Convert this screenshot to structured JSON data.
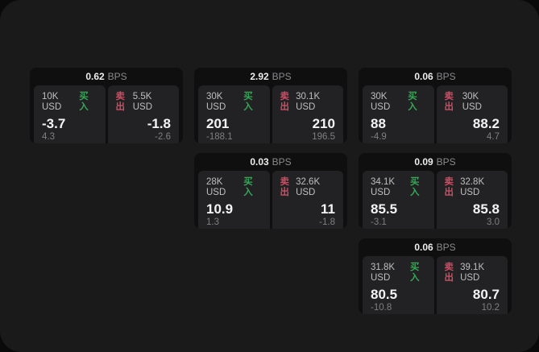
{
  "theme": {
    "page_background": "#0a0a0b",
    "window_background": "#1a1a1b",
    "card_background": "#0f0f10",
    "panel_background": "#222224",
    "buy_color": "#34a855",
    "sell_color": "#c94f64"
  },
  "labels": {
    "buy": "买入",
    "sell": "卖出",
    "bps_unit": "BPS"
  },
  "cards": [
    {
      "bps": "0.62",
      "grid": {
        "col": 1,
        "row": 1
      },
      "buy": {
        "size": "10K USD",
        "price": "-3.7",
        "sub": "4.3"
      },
      "sell": {
        "size": "5.5K USD",
        "price": "-1.8",
        "sub": "-2.6"
      }
    },
    {
      "bps": "2.92",
      "grid": {
        "col": 2,
        "row": 1
      },
      "buy": {
        "size": "30K USD",
        "price": "201",
        "sub": "-188.1"
      },
      "sell": {
        "size": "30.1K USD",
        "price": "210",
        "sub": "196.5"
      }
    },
    {
      "bps": "0.06",
      "grid": {
        "col": 3,
        "row": 1
      },
      "buy": {
        "size": "30K USD",
        "price": "88",
        "sub": "-4.9"
      },
      "sell": {
        "size": "30K USD",
        "price": "88.2",
        "sub": "4.7"
      }
    },
    {
      "bps": "0.03",
      "grid": {
        "col": 2,
        "row": 2
      },
      "buy": {
        "size": "28K USD",
        "price": "10.9",
        "sub": "1.3"
      },
      "sell": {
        "size": "32.6K USD",
        "price": "11",
        "sub": "-1.8"
      }
    },
    {
      "bps": "0.09",
      "grid": {
        "col": 3,
        "row": 2
      },
      "buy": {
        "size": "34.1K USD",
        "price": "85.5",
        "sub": "-3.1"
      },
      "sell": {
        "size": "32.8K USD",
        "price": "85.8",
        "sub": "3.0"
      }
    },
    {
      "bps": "0.06",
      "grid": {
        "col": 3,
        "row": 3
      },
      "buy": {
        "size": "31.8K USD",
        "price": "80.5",
        "sub": "-10.8"
      },
      "sell": {
        "size": "39.1K USD",
        "price": "80.7",
        "sub": "10.2"
      }
    }
  ]
}
